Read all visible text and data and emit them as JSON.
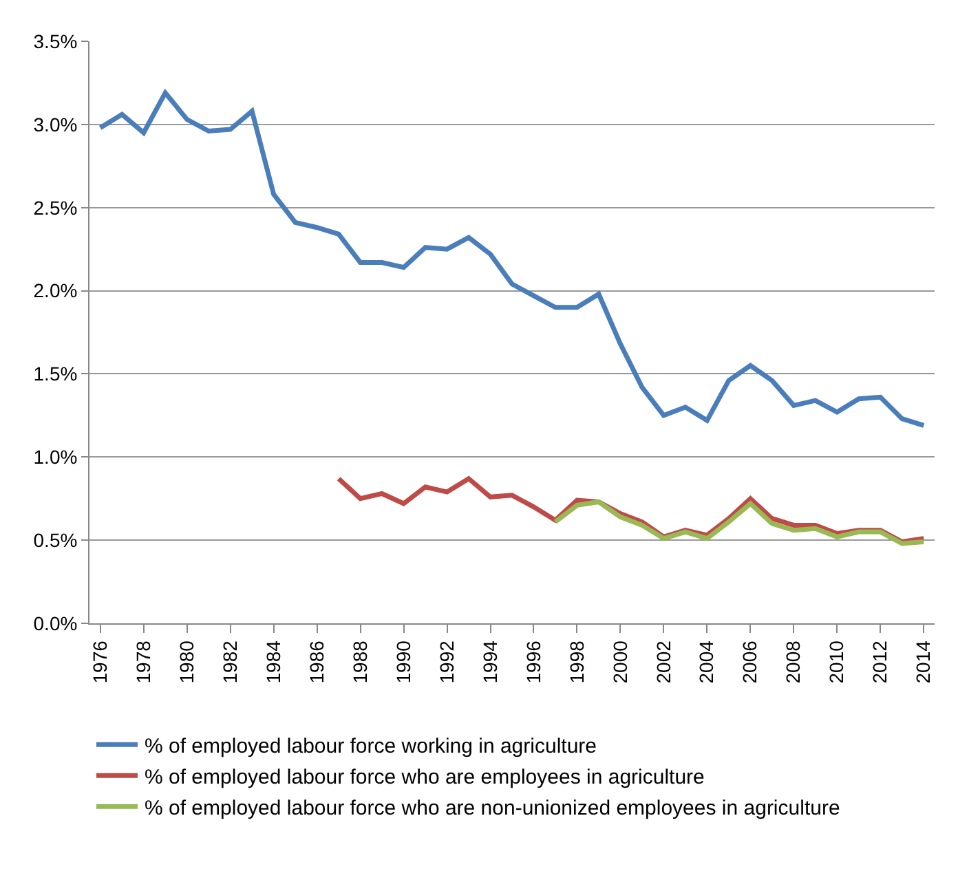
{
  "chart_data": {
    "type": "line",
    "x": [
      1976,
      1977,
      1978,
      1979,
      1980,
      1981,
      1982,
      1983,
      1984,
      1985,
      1986,
      1987,
      1988,
      1989,
      1990,
      1991,
      1992,
      1993,
      1994,
      1995,
      1996,
      1997,
      1998,
      1999,
      2000,
      2001,
      2002,
      2003,
      2004,
      2005,
      2006,
      2007,
      2008,
      2009,
      2010,
      2011,
      2012,
      2013,
      2014
    ],
    "series": [
      {
        "name": "% of employed labour force working in agriculture",
        "color": "#4a7ebb",
        "values": [
          2.98,
          3.06,
          2.95,
          3.19,
          3.03,
          2.96,
          2.97,
          3.08,
          2.58,
          2.41,
          2.38,
          2.34,
          2.17,
          2.17,
          2.14,
          2.26,
          2.25,
          2.32,
          2.22,
          2.04,
          1.97,
          1.9,
          1.9,
          1.98,
          1.68,
          1.42,
          1.25,
          1.3,
          1.22,
          1.46,
          1.55,
          1.46,
          1.31,
          1.34,
          1.27,
          1.35,
          1.36,
          1.23,
          1.19
        ]
      },
      {
        "name": "% of employed labour force who are employees in agriculture",
        "color": "#be4b48",
        "values": [
          null,
          null,
          null,
          null,
          null,
          null,
          null,
          null,
          null,
          null,
          null,
          0.87,
          0.75,
          0.78,
          0.72,
          0.82,
          0.79,
          0.87,
          0.76,
          0.77,
          0.7,
          0.62,
          0.74,
          0.73,
          0.66,
          0.61,
          0.52,
          0.56,
          0.53,
          0.63,
          0.75,
          0.63,
          0.59,
          0.59,
          0.54,
          0.56,
          0.56,
          0.49,
          0.51
        ]
      },
      {
        "name": "% of employed labour force who are non-unionized employees in agriculture",
        "color": "#98b954",
        "values": [
          null,
          null,
          null,
          null,
          null,
          null,
          null,
          null,
          null,
          null,
          null,
          null,
          null,
          null,
          null,
          null,
          null,
          null,
          null,
          null,
          null,
          0.61,
          0.71,
          0.73,
          0.64,
          0.59,
          0.51,
          0.55,
          0.51,
          0.61,
          0.72,
          0.6,
          0.56,
          0.57,
          0.52,
          0.55,
          0.55,
          0.48,
          0.49
        ]
      }
    ],
    "xlim": [
      1975.5,
      2014.5
    ],
    "xticks": [
      1976,
      1978,
      1980,
      1982,
      1984,
      1986,
      1988,
      1990,
      1992,
      1994,
      1996,
      1998,
      2000,
      2002,
      2004,
      2006,
      2008,
      2010,
      2012,
      2014
    ],
    "ylim": [
      0,
      3.5
    ],
    "yticks": [
      {
        "value": 0,
        "label": "0.0%"
      },
      {
        "value": 0.5,
        "label": "0.5%"
      },
      {
        "value": 1,
        "label": "1.0%"
      },
      {
        "value": 1.5,
        "label": "1.5%"
      },
      {
        "value": 2,
        "label": "2.0%"
      },
      {
        "value": 2.5,
        "label": "2.5%"
      },
      {
        "value": 3,
        "label": "3.0%"
      },
      {
        "value": 3.5,
        "label": "3.5%"
      }
    ],
    "grid": "y",
    "legend": "bottom",
    "marker": "none",
    "line_style": "solid"
  }
}
